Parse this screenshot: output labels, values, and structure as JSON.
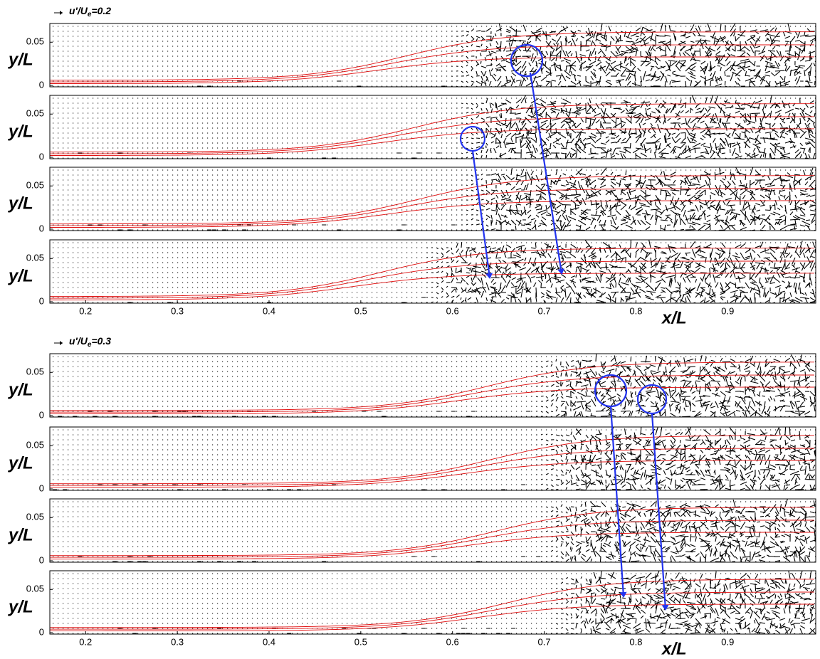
{
  "chart_data": [
    {
      "type": "vector-field",
      "reference": {
        "prefix": "u'/U",
        "sub": "e",
        "suffix": "=0.2"
      },
      "ylabel": "y/L",
      "xlim": [
        0.161,
        0.996
      ],
      "ylim": [
        0,
        0.07
      ],
      "yticks": [
        0,
        0.05
      ]
    },
    {
      "type": "vector-field",
      "ylabel": "y/L",
      "xlim": [
        0.161,
        0.996
      ],
      "ylim": [
        0,
        0.07
      ],
      "yticks": [
        0,
        0.05
      ]
    },
    {
      "type": "vector-field",
      "ylabel": "y/L",
      "xlim": [
        0.161,
        0.996
      ],
      "ylim": [
        0,
        0.07
      ],
      "yticks": [
        0,
        0.05
      ]
    },
    {
      "type": "vector-field",
      "ylabel": "y/L",
      "xlim": [
        0.161,
        0.996
      ],
      "ylim": [
        0,
        0.07
      ],
      "yticks": [
        0,
        0.05
      ],
      "xticks": [
        0.2,
        0.3,
        0.4,
        0.5,
        0.6,
        0.7,
        0.8,
        0.9
      ],
      "xlabel": "x/L"
    },
    {
      "type": "vector-field",
      "reference": {
        "prefix": "u'/U",
        "sub": "e",
        "suffix": "=0.3"
      },
      "ylabel": "y/L",
      "xlim": [
        0.161,
        0.996
      ],
      "ylim": [
        0,
        0.07
      ],
      "yticks": [
        0,
        0.05
      ]
    },
    {
      "type": "vector-field",
      "ylabel": "y/L",
      "xlim": [
        0.161,
        0.996
      ],
      "ylim": [
        0,
        0.07
      ],
      "yticks": [
        0,
        0.05
      ]
    },
    {
      "type": "vector-field",
      "ylabel": "y/L",
      "xlim": [
        0.161,
        0.996
      ],
      "ylim": [
        0,
        0.07
      ],
      "yticks": [
        0,
        0.05
      ]
    },
    {
      "type": "vector-field",
      "ylabel": "y/L",
      "xlim": [
        0.161,
        0.996
      ],
      "ylim": [
        0,
        0.07
      ],
      "yticks": [
        0,
        0.05
      ],
      "xticks": [
        0.2,
        0.3,
        0.4,
        0.5,
        0.6,
        0.7,
        0.8,
        0.9
      ],
      "xlabel": "x/L"
    }
  ]
}
